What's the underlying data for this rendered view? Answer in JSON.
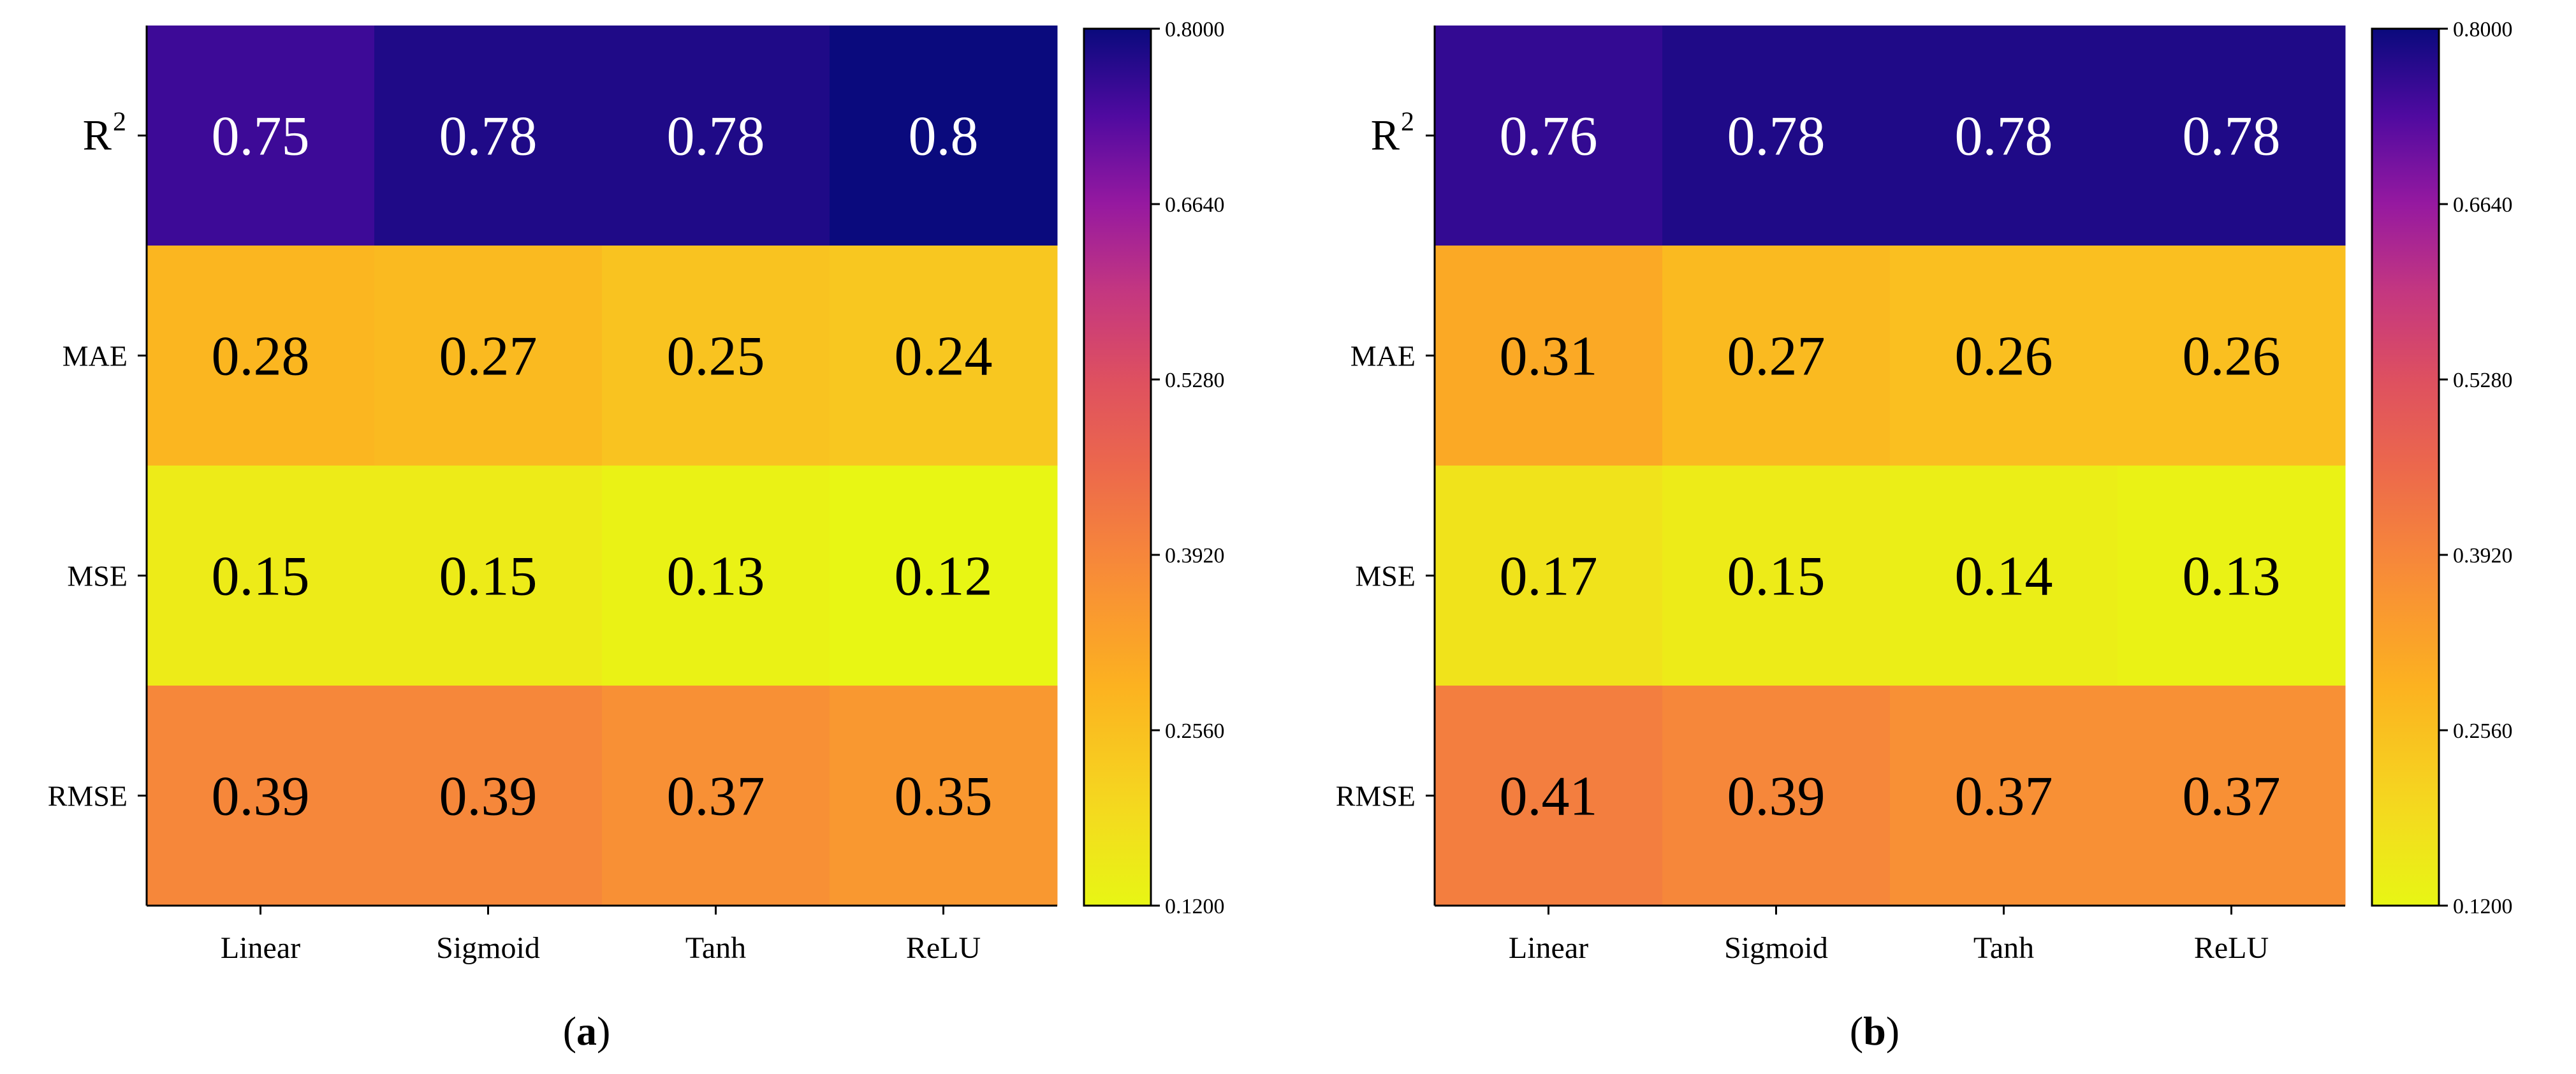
{
  "chart_data": [
    {
      "type": "heatmap",
      "panel": "a",
      "caption_letter": "a",
      "row_labels": [
        "R",
        "MAE",
        "MSE",
        "RMSE"
      ],
      "row_label_superscripts": [
        "2",
        "",
        "",
        ""
      ],
      "column_labels": [
        "Linear",
        "Sigmoid",
        "Tanh",
        "ReLU"
      ],
      "values": [
        [
          0.75,
          0.78,
          0.78,
          0.8
        ],
        [
          0.28,
          0.27,
          0.25,
          0.24
        ],
        [
          0.15,
          0.15,
          0.13,
          0.12
        ],
        [
          0.39,
          0.39,
          0.37,
          0.35
        ]
      ],
      "cell_text": [
        [
          "0.75",
          "0.78",
          "0.78",
          "0.8"
        ],
        [
          "0.28",
          "0.27",
          "0.25",
          "0.24"
        ],
        [
          "0.15",
          "0.15",
          "0.13",
          "0.12"
        ],
        [
          "0.39",
          "0.39",
          "0.37",
          "0.35"
        ]
      ],
      "colorbar": {
        "min": 0.12,
        "max": 0.8,
        "ticks": [
          "0.8000",
          "0.6640",
          "0.5280",
          "0.3920",
          "0.2560",
          "0.1200"
        ],
        "tick_values": [
          0.8,
          0.664,
          0.528,
          0.392,
          0.256,
          0.12
        ],
        "colormap": "plasma-reversed"
      }
    },
    {
      "type": "heatmap",
      "panel": "b",
      "caption_letter": "b",
      "row_labels": [
        "R",
        "MAE",
        "MSE",
        "RMSE"
      ],
      "row_label_superscripts": [
        "2",
        "",
        "",
        ""
      ],
      "column_labels": [
        "Linear",
        "Sigmoid",
        "Tanh",
        "ReLU"
      ],
      "values": [
        [
          0.76,
          0.78,
          0.78,
          0.78
        ],
        [
          0.31,
          0.27,
          0.26,
          0.26
        ],
        [
          0.17,
          0.15,
          0.14,
          0.13
        ],
        [
          0.41,
          0.39,
          0.37,
          0.37
        ]
      ],
      "cell_text": [
        [
          "0.76",
          "0.78",
          "0.78",
          "0.78"
        ],
        [
          "0.31",
          "0.27",
          "0.26",
          "0.26"
        ],
        [
          "0.17",
          "0.15",
          "0.14",
          "0.13"
        ],
        [
          "0.41",
          "0.39",
          "0.37",
          "0.37"
        ]
      ],
      "colorbar": {
        "min": 0.12,
        "max": 0.8,
        "ticks": [
          "0.8000",
          "0.6640",
          "0.5280",
          "0.3920",
          "0.2560",
          "0.1200"
        ],
        "tick_values": [
          0.8,
          0.664,
          0.528,
          0.392,
          0.256,
          0.12
        ],
        "colormap": "plasma-reversed"
      }
    }
  ],
  "colors": {
    "light_text": "#ffffff",
    "dark_text": "#000000",
    "axis": "#000000"
  }
}
